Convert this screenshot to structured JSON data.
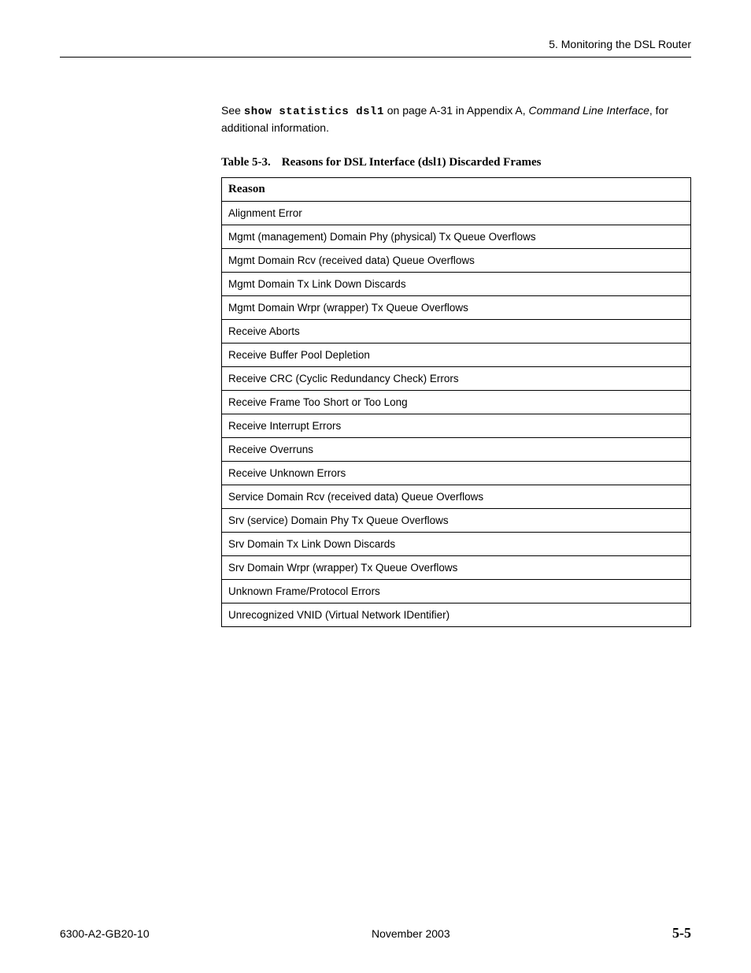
{
  "header": {
    "title": "5. Monitoring the DSL Router"
  },
  "intro": {
    "pre": "See ",
    "cmd": "show statistics dsl1",
    "mid": " on page A-31 in Appendix A, ",
    "italic": "Command Line Interface",
    "post": ", for additional information."
  },
  "table": {
    "caption_num": "Table 5-3.",
    "caption_text": "Reasons for DSL Interface (dsl1) Discarded Frames",
    "header": "Reason",
    "rows": [
      "Alignment Error",
      "Mgmt (management) Domain Phy (physical) Tx Queue Overflows",
      "Mgmt Domain Rcv (received data) Queue Overflows",
      "Mgmt Domain Tx Link Down Discards",
      "Mgmt Domain Wrpr (wrapper) Tx Queue Overflows",
      "Receive Aborts",
      "Receive Buffer Pool Depletion",
      "Receive CRC (Cyclic Redundancy Check) Errors",
      "Receive Frame Too Short or Too Long",
      "Receive Interrupt Errors",
      "Receive Overruns",
      "Receive Unknown Errors",
      "Service Domain Rcv (received data) Queue Overflows",
      "Srv (service) Domain Phy Tx Queue Overflows",
      "Srv Domain Tx Link Down Discards",
      "Srv Domain Wrpr (wrapper) Tx Queue Overflows",
      "Unknown Frame/Protocol Errors",
      "Unrecognized VNID (Virtual Network IDentifier)"
    ]
  },
  "footer": {
    "left": "6300-A2-GB20-10",
    "center": "November 2003",
    "right": "5-5"
  }
}
